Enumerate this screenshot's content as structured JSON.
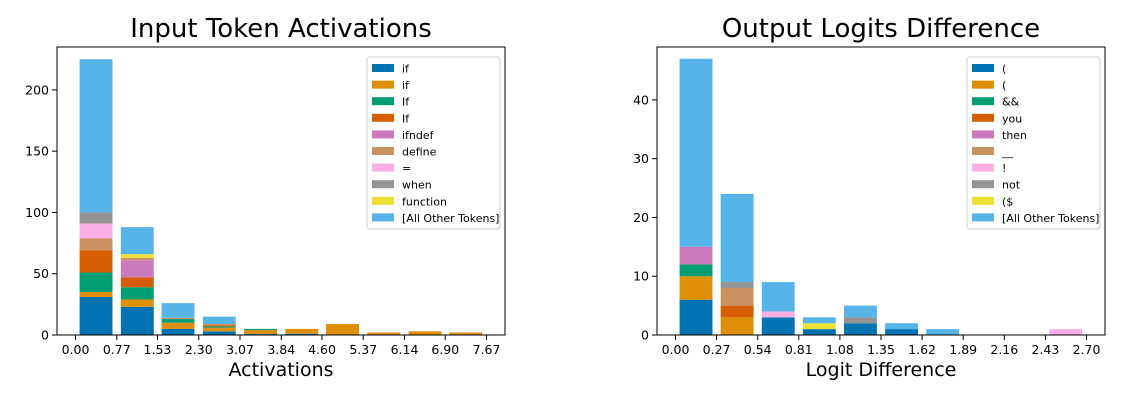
{
  "chart_data": [
    {
      "type": "bar",
      "stacked": true,
      "title": "Input Token Activations",
      "xlabel": "Activations",
      "ylabel": "",
      "xlim": [
        0,
        7.67
      ],
      "ylim": [
        0,
        235
      ],
      "x_ticks": [
        0.0,
        0.77,
        1.53,
        2.3,
        3.07,
        3.84,
        4.6,
        5.37,
        6.14,
        6.9,
        7.67
      ],
      "x_tick_labels": [
        "0.00",
        "0.77",
        "1.53",
        "2.30",
        "3.07",
        "3.84",
        "4.60",
        "5.37",
        "6.14",
        "6.90",
        "7.67"
      ],
      "y_ticks": [
        0,
        50,
        100,
        150,
        200
      ],
      "y_tick_labels": [
        "0",
        "50",
        "100",
        "150",
        "200"
      ],
      "bin_width": 0.767,
      "bin_starts": [
        0.0,
        0.77,
        1.53,
        2.3,
        3.07,
        3.84,
        4.6,
        5.37,
        6.14,
        6.9
      ],
      "legend_position": "upper right",
      "grid": false,
      "series": [
        {
          "name": " if",
          "color": "#0173b2",
          "values": [
            31,
            23,
            5,
            3,
            1,
            1,
            0,
            0,
            0,
            0
          ]
        },
        {
          "name": "if",
          "color": "#de8f05",
          "values": [
            4,
            6,
            5,
            3,
            3,
            4,
            9,
            2,
            3,
            2
          ]
        },
        {
          "name": " If",
          "color": "#029e73",
          "values": [
            16,
            10,
            3,
            1,
            1,
            0,
            0,
            0,
            0,
            0
          ]
        },
        {
          "name": "If",
          "color": "#d55e00",
          "values": [
            18,
            8,
            0,
            1,
            0,
            0,
            0,
            0,
            0,
            0
          ]
        },
        {
          "name": "ifndef",
          "color": "#cc78bc",
          "values": [
            0,
            14,
            0,
            0,
            0,
            0,
            0,
            0,
            0,
            0
          ]
        },
        {
          "name": "define",
          "color": "#ca9161",
          "values": [
            10,
            2,
            1,
            1,
            0,
            0,
            0,
            0,
            0,
            0
          ]
        },
        {
          "name": " =",
          "color": "#fbafe4",
          "values": [
            12,
            0,
            0,
            0,
            0,
            0,
            0,
            0,
            0,
            0
          ]
        },
        {
          "name": " when",
          "color": "#949494",
          "values": [
            9,
            0,
            0,
            0,
            0,
            0,
            0,
            0,
            0,
            0
          ]
        },
        {
          "name": " function",
          "color": "#ece133",
          "values": [
            0,
            3,
            0,
            0,
            0,
            0,
            0,
            0,
            0,
            0
          ]
        },
        {
          "name": "[All Other Tokens]",
          "color": "#56b4e9",
          "values": [
            125,
            22,
            12,
            6,
            0,
            0,
            0,
            0,
            0,
            0
          ]
        }
      ]
    },
    {
      "type": "bar",
      "stacked": true,
      "title": "Output Logits Difference",
      "xlabel": "Logit Difference",
      "ylabel": "",
      "xlim": [
        0,
        2.7
      ],
      "ylim": [
        0,
        49
      ],
      "x_ticks": [
        0.0,
        0.27,
        0.54,
        0.81,
        1.08,
        1.35,
        1.62,
        1.89,
        2.16,
        2.43,
        2.7
      ],
      "x_tick_labels": [
        "0.00",
        "0.27",
        "0.54",
        "0.81",
        "1.08",
        "1.35",
        "1.62",
        "1.89",
        "2.16",
        "2.43",
        "2.70"
      ],
      "y_ticks": [
        0,
        10,
        20,
        30,
        40
      ],
      "y_tick_labels": [
        "0",
        "10",
        "20",
        "30",
        "40"
      ],
      "bin_width": 0.27,
      "bin_starts": [
        0.0,
        0.27,
        0.54,
        0.81,
        1.08,
        1.35,
        1.62,
        1.89,
        2.16,
        2.43
      ],
      "legend_position": "upper right",
      "grid": false,
      "series": [
        {
          "name": " (",
          "color": "#0173b2",
          "values": [
            6,
            0,
            3,
            1,
            2,
            1,
            0,
            0,
            0,
            0
          ]
        },
        {
          "name": "(",
          "color": "#de8f05",
          "values": [
            4,
            3,
            0,
            0,
            0,
            0,
            0,
            0,
            0,
            0
          ]
        },
        {
          "name": " &&",
          "color": "#029e73",
          "values": [
            2,
            0,
            0,
            0,
            0,
            0,
            0,
            0,
            0,
            0
          ]
        },
        {
          "name": " you",
          "color": "#d55e00",
          "values": [
            0,
            2,
            0,
            0,
            0,
            0,
            0,
            0,
            0,
            0
          ]
        },
        {
          "name": " then",
          "color": "#cc78bc",
          "values": [
            3,
            0,
            0,
            0,
            0,
            0,
            0,
            0,
            0,
            0
          ]
        },
        {
          "name": " __",
          "color": "#ca9161",
          "values": [
            0,
            3,
            0,
            0,
            0,
            0,
            0,
            0,
            0,
            0
          ]
        },
        {
          "name": "!",
          "color": "#fbafe4",
          "values": [
            0,
            0,
            1,
            0,
            0,
            0,
            0,
            0,
            0,
            1
          ]
        },
        {
          "name": " not",
          "color": "#949494",
          "values": [
            0,
            1,
            0,
            0,
            1,
            0,
            0,
            0,
            0,
            0
          ]
        },
        {
          "name": "($",
          "color": "#ece133",
          "values": [
            0,
            0,
            0,
            1,
            0,
            0,
            0,
            0,
            0,
            0
          ]
        },
        {
          "name": "[All Other Tokens]",
          "color": "#56b4e9",
          "values": [
            32,
            15,
            5,
            1,
            2,
            1,
            1,
            0,
            0,
            0
          ]
        }
      ]
    }
  ]
}
